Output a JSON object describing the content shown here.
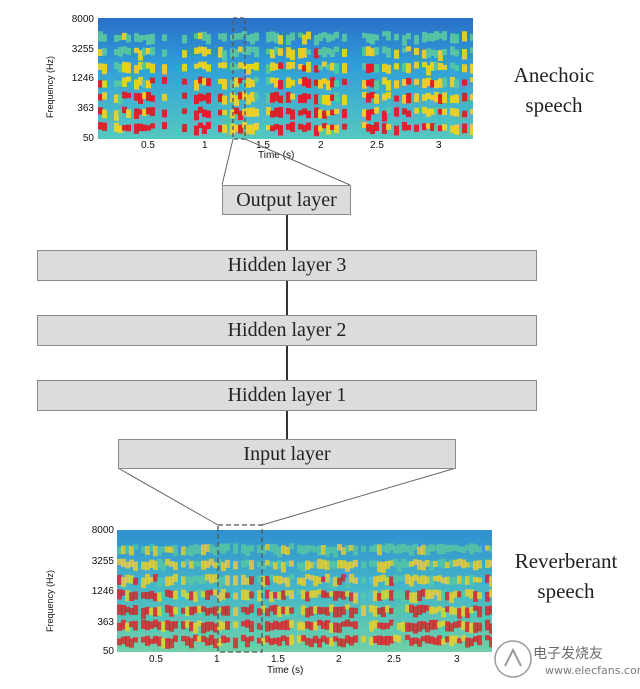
{
  "top_spectrogram": {
    "y_ticks": [
      "8000",
      "3255",
      "1246",
      "363",
      "50"
    ],
    "x_ticks": [
      "0.5",
      "1",
      "1.5",
      "2",
      "2.5",
      "3"
    ],
    "ylabel": "Frequency (Hz)",
    "xlabel": "Time (s)",
    "caption_line1": "Anechoic",
    "caption_line2": "speech"
  },
  "bottom_spectrogram": {
    "y_ticks": [
      "8000",
      "3255",
      "1246",
      "363",
      "50"
    ],
    "x_ticks": [
      "0.5",
      "1",
      "1.5",
      "2",
      "2.5",
      "3"
    ],
    "ylabel": "Frequency (Hz)",
    "xlabel": "Time (s)",
    "caption_line1": "Reverberant",
    "caption_line2": "speech"
  },
  "network": {
    "output_layer": "Output layer",
    "hidden_layer_3": "Hidden layer 3",
    "hidden_layer_2": "Hidden layer 2",
    "hidden_layer_1": "Hidden layer 1",
    "input_layer": "Input layer"
  },
  "watermark": {
    "name": "电子发烧友",
    "url": "www.elecfans.com"
  },
  "colors": {
    "spectrogram_background": "#1e90c8",
    "energy_high": "#e8141e",
    "energy_mid": "#f5d21e",
    "energy_low": "#5ac8a0",
    "layer_fill": "#dcdcdc"
  }
}
